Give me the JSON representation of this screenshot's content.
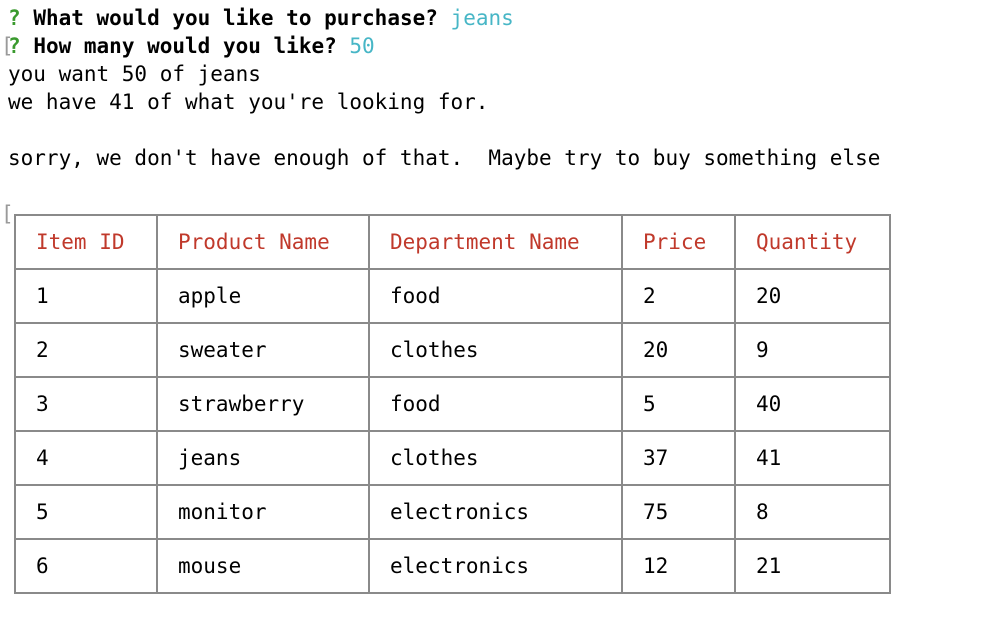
{
  "prompts": [
    {
      "marker": "?",
      "question": "What would you like to purchase?",
      "answer": "jeans"
    },
    {
      "marker": "?",
      "question": "How many would you like?",
      "answer": "50"
    }
  ],
  "output_lines": [
    "you want 50 of jeans",
    "we have 41 of what you're looking for.",
    "",
    "sorry, we don't have enough of that.  Maybe try to buy something else"
  ],
  "table": {
    "headers": [
      "Item ID",
      "Product Name",
      "Department Name",
      "Price",
      "Quantity"
    ],
    "rows": [
      [
        "1",
        "apple",
        "food",
        "2",
        "20"
      ],
      [
        "2",
        "sweater",
        "clothes",
        "20",
        "9"
      ],
      [
        "3",
        "strawberry",
        "food",
        "5",
        "40"
      ],
      [
        "4",
        "jeans",
        "clothes",
        "37",
        "41"
      ],
      [
        "5",
        "monitor",
        "electronics",
        "75",
        "8"
      ],
      [
        "6",
        "mouse",
        "electronics",
        "12",
        "21"
      ]
    ]
  },
  "colors": {
    "prompt_marker": "#3a9a2e",
    "answer": "#47b6c6",
    "table_header": "#c0392b",
    "table_border": "#8a8a8a"
  }
}
